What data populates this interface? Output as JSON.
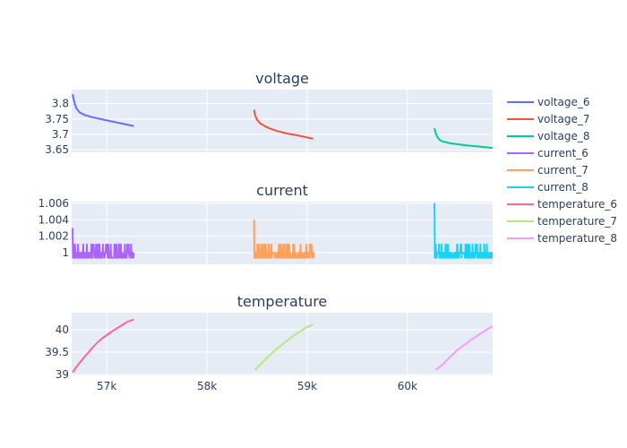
{
  "chart_data": {
    "type": "line",
    "x_axis": {
      "range": [
        56650,
        60850
      ],
      "ticks": [
        57000,
        58000,
        59000,
        60000
      ],
      "tick_labels": [
        "57k",
        "58k",
        "59k",
        "60k"
      ]
    },
    "legend_placement": "right",
    "grid": true,
    "panels": [
      {
        "title": "voltage",
        "ylim": [
          3.642,
          3.845
        ],
        "yticks": [
          3.65,
          3.7,
          3.75,
          3.8
        ],
        "ytick_labels": [
          "3.65",
          "3.7",
          "3.75",
          "3.8"
        ],
        "series": [
          {
            "name": "voltage_6",
            "color": "#636efa",
            "x": [
              56660,
              56670,
              56685,
              56700,
              56730,
              56780,
              56850,
              56950,
              57050,
              57150,
              57270
            ],
            "y": [
              3.83,
              3.815,
              3.795,
              3.783,
              3.771,
              3.763,
              3.756,
              3.749,
              3.742,
              3.735,
              3.727
            ]
          },
          {
            "name": "voltage_7",
            "color": "#ef553b",
            "x": [
              58470,
              58480,
              58500,
              58530,
              58570,
              58620,
              58700,
              58800,
              58900,
              59000,
              59060
            ],
            "y": [
              3.78,
              3.762,
              3.747,
              3.736,
              3.728,
              3.72,
              3.711,
              3.703,
              3.697,
              3.69,
              3.686
            ]
          },
          {
            "name": "voltage_8",
            "color": "#00cc96",
            "x": [
              60270,
              60280,
              60300,
              60330,
              60370,
              60420,
              60500,
              60600,
              60700,
              60800,
              60850
            ],
            "y": [
              3.72,
              3.705,
              3.69,
              3.68,
              3.676,
              3.672,
              3.668,
              3.664,
              3.661,
              3.658,
              3.656
            ]
          }
        ]
      },
      {
        "title": "current",
        "ylim": [
          0.9986,
          1.0062
        ],
        "yticks": [
          1,
          1.002,
          1.004,
          1.006
        ],
        "ytick_labels": [
          "1",
          "1.002",
          "1.004",
          "1.006"
        ],
        "series": [
          {
            "name": "current_6",
            "color": "#ab63fa",
            "x_start": 56660,
            "x_end": 57270,
            "y_base": 0.9994,
            "y_spike": 1.001,
            "y_peak": 1.003,
            "n_spikes": 30,
            "seed": 6
          },
          {
            "name": "current_7",
            "color": "#ffa15a",
            "x_start": 58470,
            "x_end": 59070,
            "y_base": 0.9994,
            "y_spike": 1.001,
            "y_peak": 1.004,
            "n_spikes": 30,
            "seed": 7
          },
          {
            "name": "current_8",
            "color": "#19d3f3",
            "x_start": 60270,
            "x_end": 60850,
            "y_base": 0.9994,
            "y_spike": 1.001,
            "y_peak": 1.006,
            "n_spikes": 26,
            "seed": 8
          }
        ]
      },
      {
        "title": "temperature",
        "ylim": [
          38.98,
          40.38
        ],
        "yticks": [
          39,
          39.5,
          40
        ],
        "ytick_labels": [
          "39",
          "39.5",
          "40"
        ],
        "series": [
          {
            "name": "temperature_6",
            "color": "#ff6692",
            "x": [
              56660,
              56700,
              56750,
              56800,
              56850,
              56900,
              56950,
              57000,
              57050,
              57100,
              57150,
              57200,
              57270
            ],
            "y": [
              39.05,
              39.18,
              39.32,
              39.45,
              39.58,
              39.7,
              39.8,
              39.88,
              39.96,
              40.03,
              40.1,
              40.17,
              40.23
            ]
          },
          {
            "name": "temperature_7",
            "color": "#b6e880",
            "x": [
              58480,
              58550,
              58620,
              58700,
              58780,
              58850,
              58920,
              58990,
              59060
            ],
            "y": [
              39.1,
              39.26,
              39.42,
              39.58,
              39.72,
              39.85,
              39.95,
              40.05,
              40.12
            ]
          },
          {
            "name": "temperature_8",
            "color": "#ff97ff",
            "x": [
              60280,
              60350,
              60420,
              60500,
              60580,
              60650,
              60720,
              60790,
              60850
            ],
            "y": [
              39.1,
              39.22,
              39.38,
              39.55,
              39.68,
              39.8,
              39.9,
              40.0,
              40.08
            ]
          }
        ]
      }
    ]
  }
}
